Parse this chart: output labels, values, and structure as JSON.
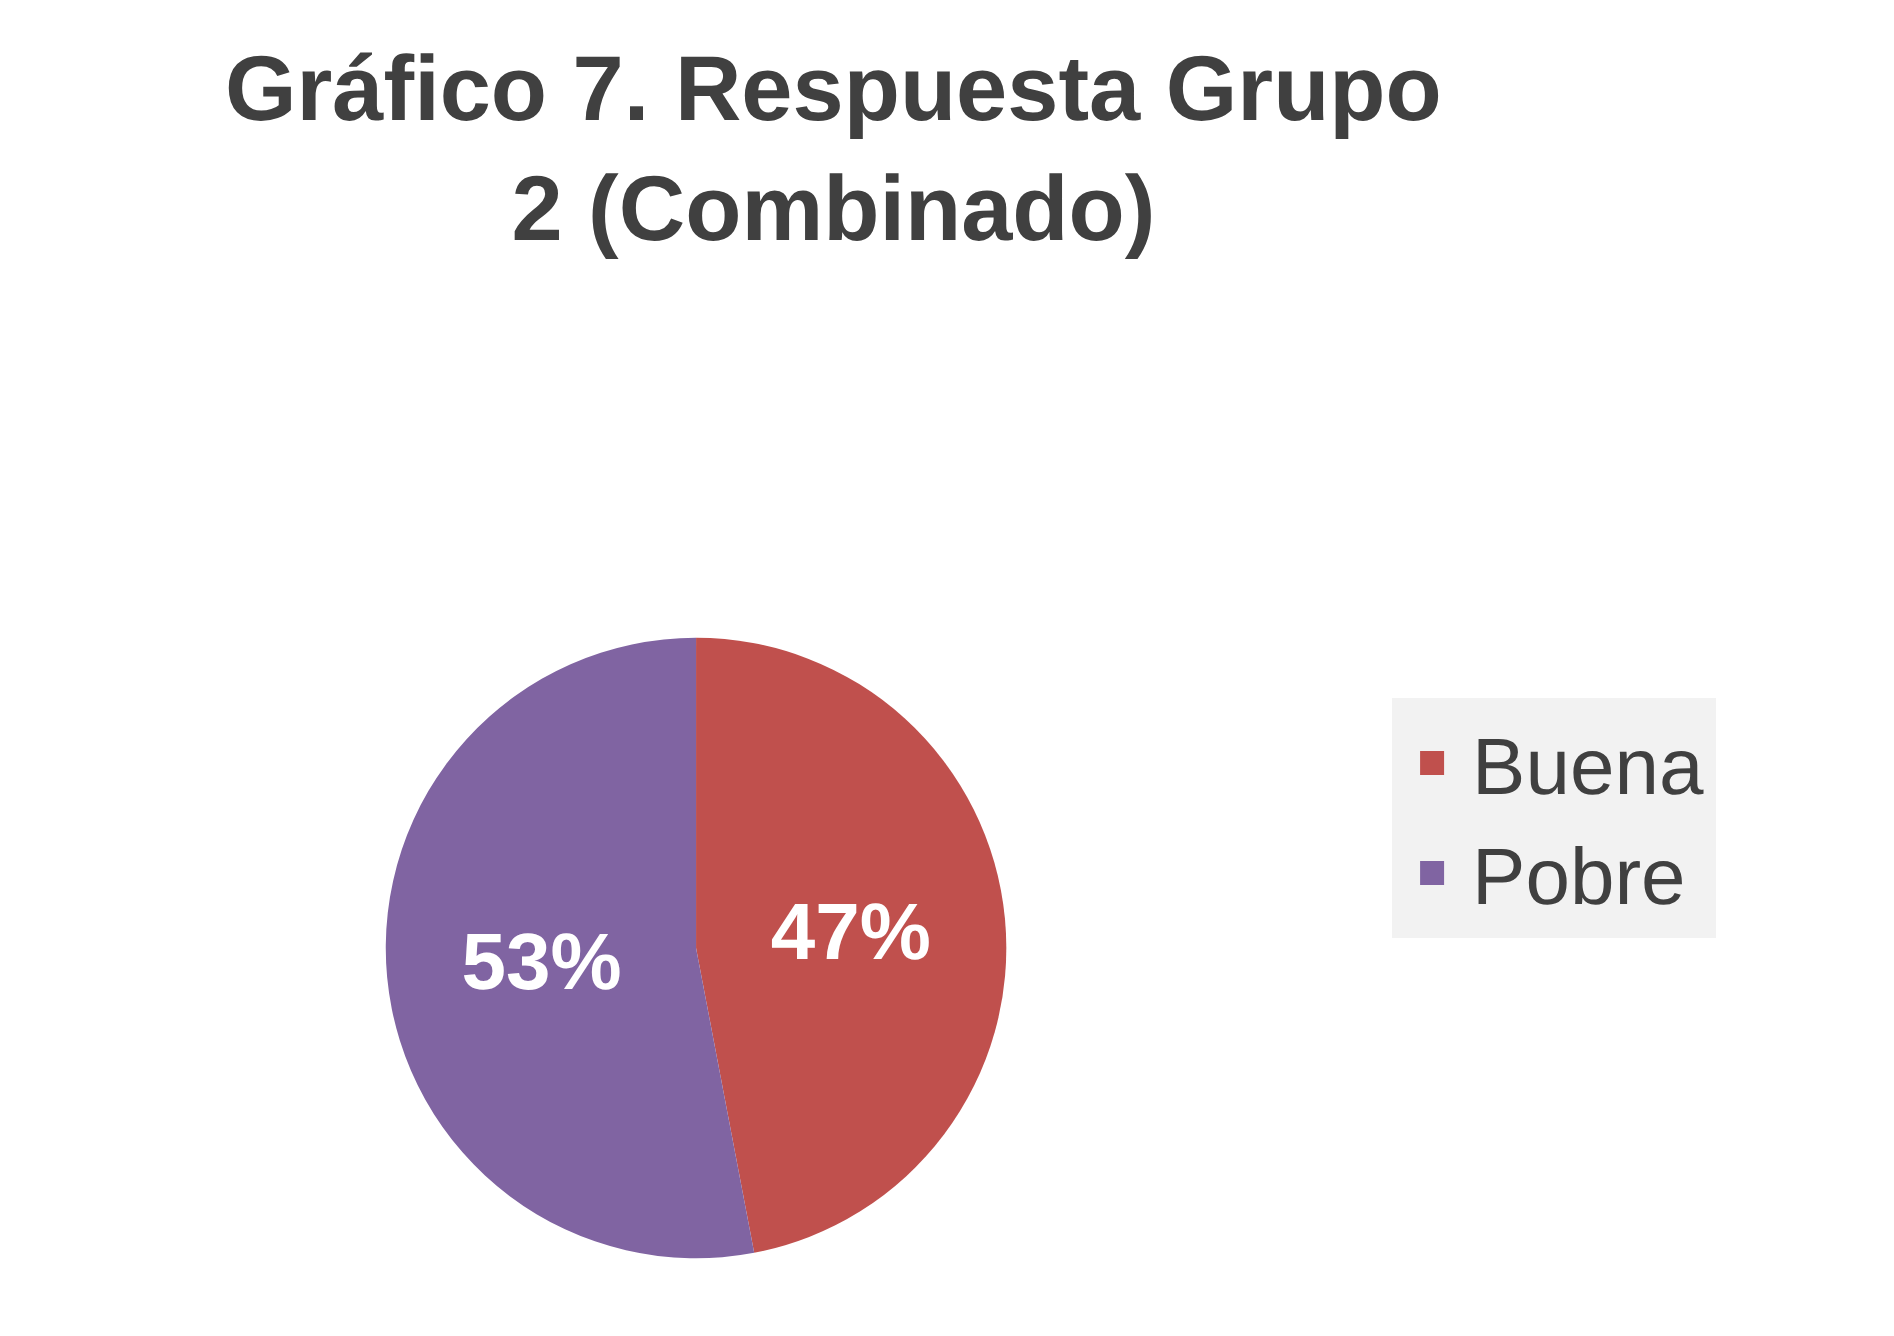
{
  "chart_data": {
    "type": "pie",
    "title": "Gráfico 7. Respuesta Grupo 2 (Combinado)",
    "categories": [
      "Buena",
      "Pobre"
    ],
    "values": [
      47,
      53
    ],
    "colors": [
      "#c0504d",
      "#8064a2"
    ],
    "value_labels": [
      "47%",
      "53%"
    ],
    "legend": "right"
  }
}
